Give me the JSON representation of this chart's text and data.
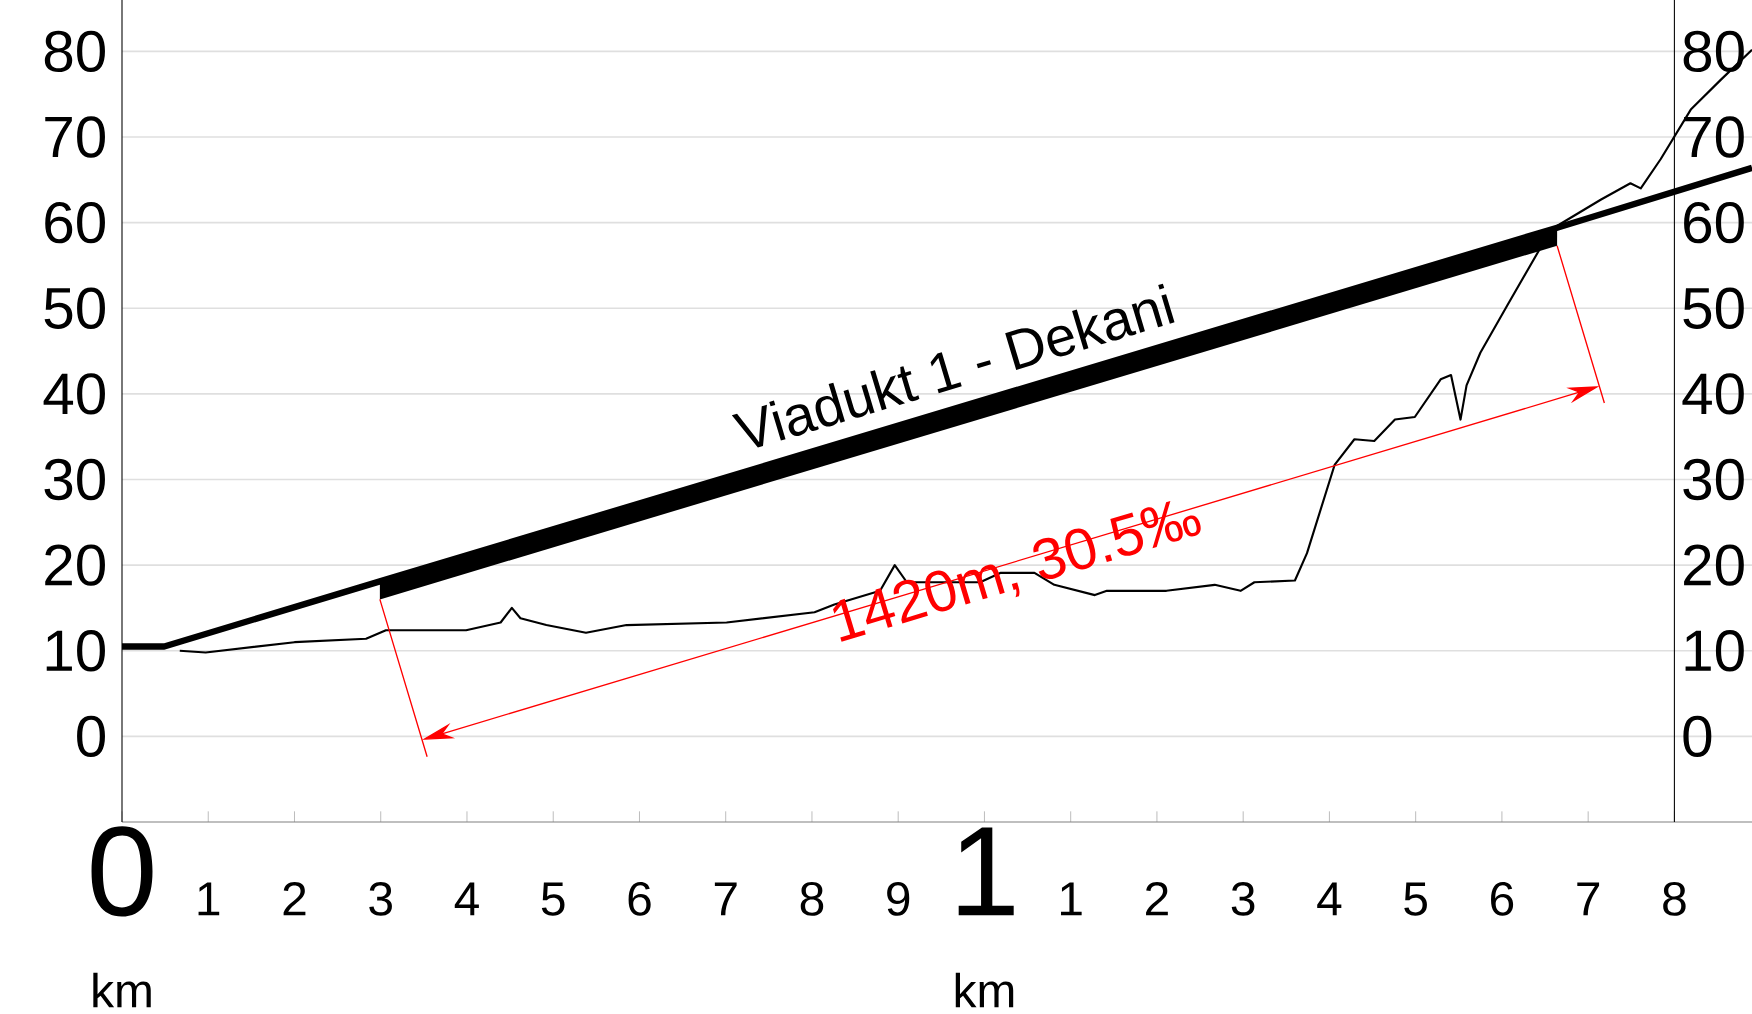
{
  "chart_data": {
    "type": "line",
    "xlim": [
      0,
      1.89
    ],
    "ylim": [
      -10,
      86
    ],
    "xticks": [
      0,
      {
        "value": 0.1,
        "label": null
      },
      {
        "value": 0.2,
        "label": null
      },
      {
        "value": 0.3,
        "label": null
      },
      {
        "value": 0.4,
        "label": null
      },
      {
        "value": 0.5,
        "label": null
      },
      {
        "value": 0.6,
        "label": null
      },
      {
        "value": 0.7,
        "label": null
      },
      {
        "value": 0.8,
        "label": null
      },
      {
        "value": 0.9,
        "label": null
      },
      1,
      {
        "value": 1.1,
        "label": null
      },
      {
        "value": 1.2,
        "label": null
      },
      {
        "value": 1.3,
        "label": null
      },
      {
        "value": 1.4,
        "label": null
      },
      {
        "value": 1.5,
        "label": null
      },
      {
        "value": 1.6,
        "label": null
      },
      {
        "value": 1.7,
        "label": null
      },
      {
        "value": 1.8,
        "label": null
      }
    ],
    "yticks": [
      0,
      10,
      20,
      30,
      40,
      50,
      60,
      70,
      80
    ],
    "y2lim": [
      -10,
      86
    ],
    "y2ticks": [
      0,
      10,
      20,
      30,
      40,
      50,
      60,
      70,
      80
    ],
    "grid": "y",
    "series": [
      {
        "color": "#000000",
        "x": [
          0,
          0.049,
          0.299,
          1.664,
          1.89
        ],
        "values": [
          10.5,
          10.5,
          18.1,
          59.4,
          66.4
        ],
        "lower": [
          null,
          null,
          16.0,
          57.3,
          null
        ],
        "upper": [
          null,
          null,
          18.1,
          59.4,
          null
        ]
      },
      {
        "color": "#000000",
        "x": [
          0.067,
          0.097,
          0.2,
          0.283,
          0.306,
          0.399,
          0.439,
          0.452,
          0.462,
          0.492,
          0.538,
          0.585,
          0.701,
          0.803,
          0.826,
          0.879,
          0.896,
          0.91,
          0.995,
          1.019,
          1.058,
          1.081,
          1.128,
          1.142,
          1.211,
          1.267,
          1.297,
          1.313,
          1.36,
          1.374,
          1.406,
          1.429,
          1.452,
          1.476,
          1.499,
          1.529,
          1.541,
          1.552,
          1.559,
          1.575,
          1.606,
          1.657,
          1.715,
          1.749,
          1.761,
          1.784,
          1.819,
          1.854,
          1.89
        ],
        "values": [
          10.0,
          9.8,
          11.0,
          11.4,
          12.4,
          12.4,
          13.3,
          15,
          13.8,
          13,
          12.1,
          13,
          13.3,
          14.5,
          15.4,
          17,
          20,
          18,
          18,
          19.1,
          19.1,
          17.7,
          16.5,
          17,
          17,
          17.7,
          17,
          18,
          18.2,
          21.4,
          31.7,
          34.7,
          34.5,
          37,
          37.3,
          41.7,
          42.2,
          37,
          41,
          44.8,
          50.3,
          59.2,
          62.7,
          64.6,
          64,
          67.4,
          73.2,
          76.7,
          80.2
        ]
      }
    ],
    "annotations": [
      "1",
      "2",
      "3",
      "4",
      "5",
      "6",
      "7",
      "8",
      "9",
      "1",
      "2",
      "3",
      "4",
      "5",
      "6",
      "7",
      "8",
      "km",
      "km",
      "Viadukt 1 - Dekani",
      "1420m, 30.5‰"
    ]
  }
}
